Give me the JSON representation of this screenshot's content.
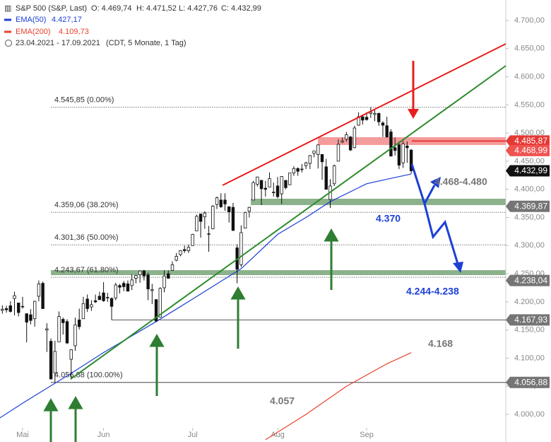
{
  "chart_data": {
    "type": "candlestick",
    "header": {
      "title": "S&P 500 (S&P, Last)",
      "ohlc": [
        "O: 4.469,74",
        "H: 4.471,52",
        "L: 4.427,76",
        "C: 4.432,99"
      ],
      "range": "23.04.2021 - 17.09.2021",
      "period": "(CDT, 5 Monate, 1 Tag)"
    },
    "xlim": [
      -5.58,
      119.37
    ],
    "ylim": [
      3951,
      4736.45
    ],
    "xticks": [
      {
        "value": 0,
        "label": "Mai"
      },
      {
        "value": 20,
        "label": "Jun"
      },
      {
        "value": 42,
        "label": "Jul"
      },
      {
        "value": 63,
        "label": "Aug"
      },
      {
        "value": 85,
        "label": "Sep"
      }
    ],
    "yticks": [
      {
        "value": 4000,
        "label": "4.000,00"
      },
      {
        "value": 4050,
        "label": "4.050,00"
      },
      {
        "value": 4100,
        "label": "4.100,00"
      },
      {
        "value": 4150,
        "label": "4.150,00"
      },
      {
        "value": 4200,
        "label": "4.200,00"
      },
      {
        "value": 4250,
        "label": "4.250,00"
      },
      {
        "value": 4300,
        "label": "4.300,00"
      },
      {
        "value": 4350,
        "label": "4.350,00"
      },
      {
        "value": 4400,
        "label": "4.400,00"
      },
      {
        "value": 4450,
        "label": "4.450,00"
      },
      {
        "value": 4500,
        "label": "4.500,00"
      },
      {
        "value": 4550,
        "label": "4.550,00"
      },
      {
        "value": 4600,
        "label": "4.600,00"
      },
      {
        "value": 4650,
        "label": "4.650,00"
      },
      {
        "value": 4700,
        "label": "4.700,00"
      }
    ],
    "grid": false,
    "candle_color": "#111111",
    "candles": {
      "x": [
        -6,
        -5,
        -4,
        -3,
        -2,
        -1,
        0,
        1,
        2,
        3,
        4,
        5,
        6,
        7,
        8,
        9,
        10,
        11,
        12,
        13,
        14,
        15,
        16,
        17,
        18,
        19,
        20,
        21,
        22,
        23,
        24,
        25,
        26,
        27,
        28,
        29,
        30,
        31,
        32,
        33,
        34,
        35,
        36,
        37,
        38,
        39,
        40,
        41,
        42,
        43,
        44,
        45,
        46,
        47,
        48,
        49,
        50,
        51,
        52,
        53,
        54,
        55,
        56,
        57,
        58,
        59,
        60,
        61,
        62,
        63,
        64,
        65,
        66,
        67,
        68,
        69,
        70,
        71,
        72,
        73,
        74,
        75,
        76,
        77,
        78,
        79,
        80,
        81,
        82,
        83,
        84,
        85,
        86,
        87,
        88,
        89,
        90,
        91,
        92,
        93,
        94,
        95,
        96
      ],
      "open": [
        4165,
        4185,
        4188,
        4193,
        4206,
        4198,
        4191,
        4179,
        4177,
        4170,
        4210,
        4233,
        4150,
        4130,
        4074,
        4129,
        4169,
        4165,
        4098,
        4122,
        4168,
        4170,
        4205,
        4191,
        4202,
        4210,
        4216,
        4207,
        4206,
        4207,
        4229,
        4233,
        4232,
        4229,
        4242,
        4248,
        4255,
        4248,
        4220,
        4204,
        4173,
        4225,
        4250,
        4256,
        4274,
        4284,
        4293,
        4291,
        4300,
        4326,
        4356,
        4351,
        4321,
        4330,
        4373,
        4381,
        4381,
        4369,
        4368,
        4296,
        4266,
        4331,
        4361,
        4381,
        4409,
        4416,
        4402,
        4404,
        4395,
        4406,
        4392,
        4416,
        4408,
        4429,
        4437,
        4435,
        4442,
        4446,
        4464,
        4462,
        4462,
        4440,
        4382,
        4410,
        4450,
        4484,
        4489,
        4493,
        4474,
        4514,
        4529,
        4528,
        4535,
        4533,
        4535,
        4518,
        4513,
        4502,
        4474,
        4479,
        4447,
        4477,
        4469.74
      ],
      "high": [
        4194,
        4194,
        4193,
        4201,
        4218,
        4198,
        4209,
        4179,
        4187,
        4202,
        4238,
        4236,
        4162,
        4135,
        4131,
        4183,
        4172,
        4169,
        4116,
        4172,
        4188,
        4209,
        4213,
        4203,
        4213,
        4218,
        4235,
        4216,
        4208,
        4234,
        4232,
        4237,
        4238,
        4249,
        4248,
        4255,
        4257,
        4252,
        4232,
        4205,
        4226,
        4256,
        4256,
        4272,
        4287,
        4292,
        4300,
        4302,
        4321,
        4355,
        4357,
        4361,
        4335,
        4372,
        4387,
        4393,
        4393,
        4370,
        4376,
        4302,
        4336,
        4360,
        4369,
        4415,
        4422,
        4416,
        4415,
        4430,
        4412,
        4422,
        4423,
        4416,
        4429,
        4441,
        4439,
        4445,
        4449,
        4461,
        4468,
        4480,
        4462,
        4454,
        4418,
        4444,
        4489,
        4492,
        4502,
        4495,
        4513,
        4537,
        4531,
        4537,
        4545.85,
        4541,
        4536,
        4521,
        4529,
        4507,
        4492,
        4485,
        4486,
        4485,
        4471.52
      ],
      "low": [
        4164,
        4179,
        4181,
        4181,
        4176,
        4174,
        4188,
        4128,
        4160,
        4156,
        4201,
        4188,
        4111,
        4062,
        4056.88,
        4129,
        4142,
        4125,
        4062,
        4113,
        4151,
        4170,
        4182,
        4184,
        4198,
        4203,
        4200,
        4200,
        4168,
        4203,
        4215,
        4219,
        4219,
        4221,
        4233,
        4234,
        4238,
        4203,
        4196,
        4164,
        4173,
        4217,
        4241,
        4255,
        4272,
        4281,
        4287,
        4287,
        4300,
        4326,
        4314,
        4330,
        4289,
        4329,
        4365,
        4367,
        4362,
        4341,
        4326,
        4233,
        4262,
        4331,
        4350,
        4381,
        4405,
        4372,
        4387,
        4404,
        4387,
        4384,
        4374,
        4400,
        4408,
        4424,
        4424,
        4430,
        4436,
        4436,
        4457,
        4437,
        4417,
        4400,
        4367,
        4406,
        4450,
        4482,
        4485,
        4468,
        4473,
        4513,
        4515,
        4522,
        4527,
        4521,
        4513,
        4493,
        4492,
        4459,
        4460,
        4436,
        4438,
        4447,
        4427.76
      ],
      "close": [
        4180,
        4187,
        4186,
        4183,
        4211,
        4181,
        4192,
        4164,
        4167,
        4201,
        4232,
        4188,
        4152,
        4063,
        4112,
        4174,
        4163,
        4127,
        4115,
        4159,
        4156,
        4197,
        4188,
        4195,
        4200,
        4204,
        4202,
        4208,
        4192,
        4230,
        4226,
        4227,
        4219,
        4239,
        4247,
        4255,
        4246,
        4223,
        4222,
        4166,
        4224,
        4246,
        4242,
        4266,
        4281,
        4291,
        4291,
        4297,
        4320,
        4352,
        4343,
        4358,
        4320,
        4370,
        4385,
        4369,
        4374,
        4360,
        4327,
        4258,
        4323,
        4359,
        4368,
        4412,
        4422,
        4401,
        4400,
        4419,
        4395,
        4387,
        4423,
        4403,
        4429,
        4437,
        4432,
        4436,
        4447,
        4460,
        4468,
        4479,
        4449,
        4400,
        4406,
        4442,
        4480,
        4486,
        4497,
        4470,
        4509,
        4529,
        4523,
        4524,
        4537,
        4535,
        4520,
        4514,
        4493,
        4459,
        4469,
        4443,
        4481,
        4474,
        4432.99
      ]
    },
    "series": [
      {
        "name": "EMA(50)",
        "color": "#1c3fd6",
        "legend_label": "4.427,17",
        "x": [
          -6,
          0,
          12,
          20,
          33,
          42,
          54,
          63,
          70,
          76,
          85,
          90,
          96
        ],
        "values": [
          3992,
          4020,
          4073,
          4110,
          4165,
          4205,
          4259,
          4320,
          4350,
          4378,
          4410,
          4418,
          4427.17
        ]
      },
      {
        "name": "EMA(200)",
        "color": "#e8412c",
        "legend_label": "4.109,73",
        "x": [
          60,
          70,
          80,
          90,
          96
        ],
        "values": [
          3955,
          4000,
          4050,
          4090,
          4109.73
        ]
      }
    ],
    "fib_levels": [
      {
        "value": 4545.85,
        "label": "4.545,85 (0.00%)"
      },
      {
        "value": 4359.06,
        "label": "4.359,06 (38.20%)"
      },
      {
        "value": 4301.36,
        "label": "4.301,36 (50.00%)"
      },
      {
        "value": 4243.67,
        "label": "4.243,67 (61.80%)"
      },
      {
        "value": 4056.88,
        "label": "4.056,88 (100.00%)"
      }
    ],
    "price_labels": [
      {
        "value": 4485.87,
        "label": "4.485,87",
        "color": "#e53935"
      },
      {
        "value": 4468.99,
        "label": "4.468,99",
        "color": "#ef5350"
      },
      {
        "value": 4432.99,
        "label": "4.432,99",
        "color": "#111111"
      },
      {
        "value": 4369.87,
        "label": "4.369,87",
        "color": "#757575"
      },
      {
        "value": 4238.04,
        "label": "4.238,04",
        "color": "#757575"
      },
      {
        "value": 4167.93,
        "label": "4.167,93",
        "color": "#757575"
      },
      {
        "value": 4056.88,
        "label": "4.056,88",
        "color": "#757575"
      }
    ],
    "annotations": [
      "4.468-4.480",
      "4.370",
      "4.244-4.238",
      "4.168",
      "4.057"
    ]
  }
}
